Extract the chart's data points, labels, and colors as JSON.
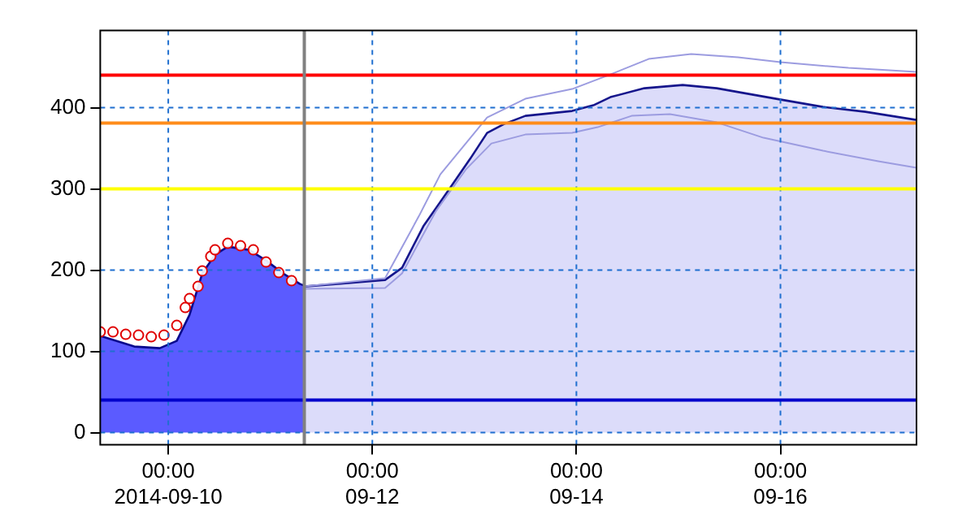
{
  "chart_data": {
    "type": "area",
    "xlim": [
      "2014-09-09T08:00",
      "2014-09-17T08:00"
    ],
    "ylim": [
      -15,
      495
    ],
    "xticks": [
      {
        "value": "2014-09-10T00:00",
        "label": "00:00\n2014-09-10"
      },
      {
        "value": "2014-09-12T00:00",
        "label": "00:00\n09-12"
      },
      {
        "value": "2014-09-14T00:00",
        "label": "00:00\n09-14"
      },
      {
        "value": "2014-09-16T00:00",
        "label": "00:00\n09-16"
      }
    ],
    "yticks": [
      0,
      100,
      200,
      300,
      400
    ],
    "grid": true,
    "legend": false,
    "series": [
      {
        "color": "#5b5bff",
        "x": [
          "2014-09-09T08:00",
          "2014-09-09T16:00",
          "2014-09-09T22:00",
          "2014-09-10T02:00",
          "2014-09-10T05:00",
          "2014-09-10T08:00",
          "2014-09-10T11:00",
          "2014-09-10T14:00",
          "2014-09-10T19:00",
          "2014-09-10T23:00",
          "2014-09-11T03:00",
          "2014-09-11T07:00",
          "2014-09-11T08:00"
        ],
        "values": [
          119,
          106,
          104,
          113,
          145,
          196,
          219,
          229,
          225,
          212,
          196,
          183,
          181
        ]
      },
      {
        "color": "#dcdcfa",
        "x": [
          "2014-09-11T08:00",
          "2014-09-11T13:00",
          "2014-09-12T03:00",
          "2014-09-12T07:00",
          "2014-09-12T12:00",
          "2014-09-12T18:00",
          "2014-09-12T23:00",
          "2014-09-13T03:00",
          "2014-09-13T07:00",
          "2014-09-13T12:00",
          "2014-09-13T23:00",
          "2014-09-14T04:00",
          "2014-09-14T08:00",
          "2014-09-14T16:00",
          "2014-09-15T01:00",
          "2014-09-15T09:00",
          "2014-09-15T23:00",
          "2014-09-16T10:00",
          "2014-09-16T20:00",
          "2014-09-17T08:00"
        ],
        "values": [
          180,
          182,
          188,
          203,
          254,
          299,
          337,
          369,
          380,
          390,
          396,
          403,
          413,
          424,
          428,
          424,
          411,
          401,
          395,
          385
        ]
      },
      {
        "type": "line",
        "color": "#9c9ce0",
        "x": [
          "2014-09-11T08:00",
          "2014-09-12T03:00",
          "2014-09-12T11:00",
          "2014-09-12T16:00",
          "2014-09-13T03:00",
          "2014-09-13T12:00",
          "2014-09-13T23:00",
          "2014-09-14T08:00",
          "2014-09-14T17:00",
          "2014-09-15T03:00",
          "2014-09-15T14:00",
          "2014-09-16T00:00",
          "2014-09-16T16:00",
          "2014-09-17T08:00"
        ],
        "values": [
          180,
          190,
          267,
          318,
          388,
          411,
          423,
          441,
          460,
          466,
          462,
          456,
          449,
          444
        ]
      },
      {
        "type": "line",
        "color": "#9c9ce0",
        "x": [
          "2014-09-11T08:00",
          "2014-09-12T03:00",
          "2014-09-12T07:00",
          "2014-09-12T15:00",
          "2014-09-12T22:00",
          "2014-09-13T04:00",
          "2014-09-13T12:00",
          "2014-09-13T23:00",
          "2014-09-14T05:00",
          "2014-09-14T13:00",
          "2014-09-14T22:00",
          "2014-09-15T09:00",
          "2014-09-15T20:00",
          "2014-09-16T10:00",
          "2014-09-16T23:00",
          "2014-09-17T08:00"
        ],
        "values": [
          177,
          178,
          196,
          273,
          324,
          356,
          367,
          369,
          376,
          390,
          392,
          382,
          363,
          347,
          334,
          326
        ]
      },
      {
        "type": "scatter",
        "color": "#e00000",
        "marker": "circle",
        "x": [
          "2014-09-09T08:00",
          "2014-09-09T11:00",
          "2014-09-09T14:00",
          "2014-09-09T17:00",
          "2014-09-09T20:00",
          "2014-09-09T23:00",
          "2014-09-10T02:00",
          "2014-09-10T04:00",
          "2014-09-10T05:00",
          "2014-09-10T07:00",
          "2014-09-10T08:00",
          "2014-09-10T10:00",
          "2014-09-10T11:00",
          "2014-09-10T14:00",
          "2014-09-10T17:00",
          "2014-09-10T20:00",
          "2014-09-10T23:00",
          "2014-09-11T02:00",
          "2014-09-11T05:00"
        ],
        "values": [
          124,
          124,
          121,
          120,
          118,
          120,
          132,
          154,
          165,
          180,
          199,
          217,
          225,
          233,
          230,
          225,
          210,
          197,
          187
        ]
      }
    ],
    "ref_lines": [
      {
        "axis": "y",
        "value": 440,
        "color": "#ff0000"
      },
      {
        "axis": "y",
        "value": 381,
        "color": "#ff8c1a"
      },
      {
        "axis": "y",
        "value": 300,
        "color": "#ffff00"
      },
      {
        "axis": "y",
        "value": 40,
        "color": "#0000cc"
      },
      {
        "axis": "x",
        "value": "2014-09-11T08:00",
        "color": "#808080"
      }
    ]
  }
}
